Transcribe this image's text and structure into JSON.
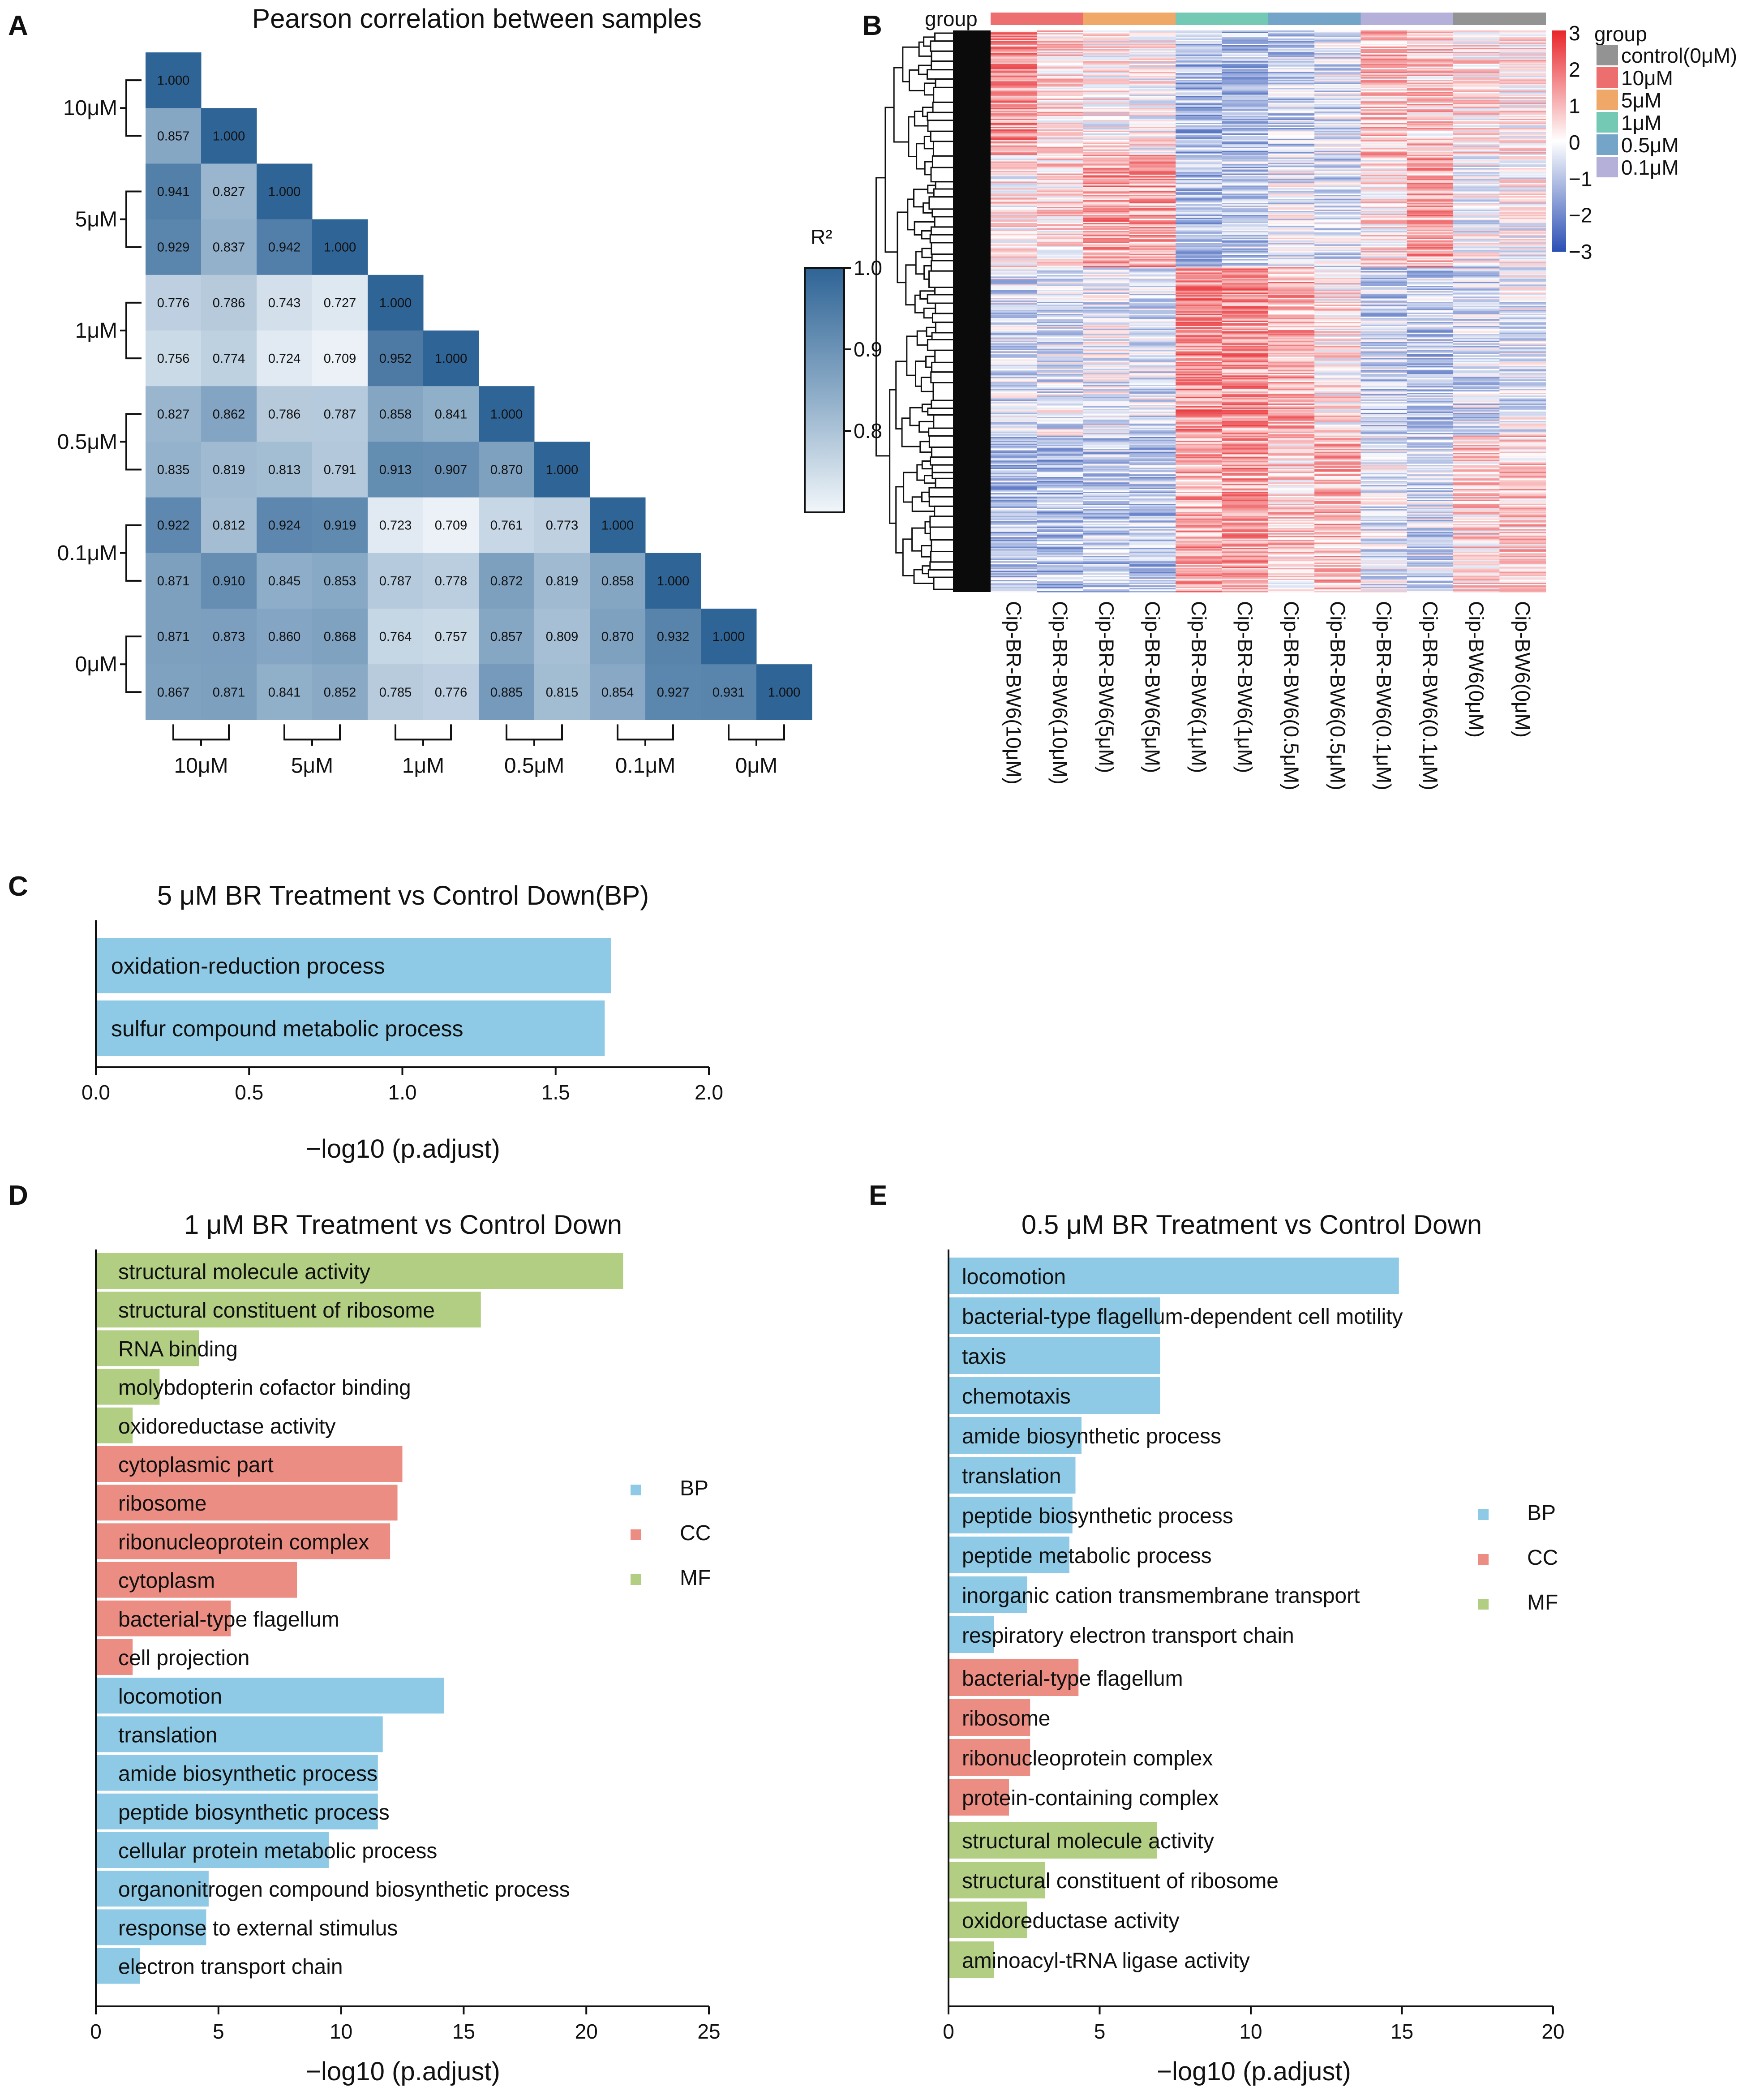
{
  "panel_letters": {
    "a": "A",
    "b": "B",
    "c": "C",
    "d": "D",
    "e": "E"
  },
  "legend_categories": [
    "BP",
    "CC",
    "MF"
  ],
  "colors": {
    "BP": "#8ecae6",
    "CC": "#eb8d82",
    "MF": "#b1ce83",
    "heat_blue": "#2f6496",
    "heat_low": "#f1f6fa"
  },
  "chart_data": [
    {
      "id": "A",
      "type": "heatmap",
      "title": "Pearson correlation between samples",
      "colorbar_label": "R²",
      "colorbar_ticks": [
        "1.0",
        "0.9",
        "0.8"
      ],
      "colorbar_range": [
        0.7,
        1.0
      ],
      "group_labels": [
        "10μM",
        "5μM",
        "1μM",
        "0.5μM",
        "0.1μM",
        "0μM"
      ],
      "matrix": [
        [
          "1.000"
        ],
        [
          "0.857",
          "1.000"
        ],
        [
          "0.941",
          "0.827",
          "1.000"
        ],
        [
          "0.929",
          "0.837",
          "0.942",
          "1.000"
        ],
        [
          "0.776",
          "0.786",
          "0.743",
          "0.727",
          "1.000"
        ],
        [
          "0.756",
          "0.774",
          "0.724",
          "0.709",
          "0.952",
          "1.000"
        ],
        [
          "0.827",
          "0.862",
          "0.786",
          "0.787",
          "0.858",
          "0.841",
          "1.000"
        ],
        [
          "0.835",
          "0.819",
          "0.813",
          "0.791",
          "0.913",
          "0.907",
          "0.870",
          "1.000"
        ],
        [
          "0.922",
          "0.812",
          "0.924",
          "0.919",
          "0.723",
          "0.709",
          "0.761",
          "0.773",
          "1.000"
        ],
        [
          "0.871",
          "0.910",
          "0.845",
          "0.853",
          "0.787",
          "0.778",
          "0.872",
          "0.819",
          "0.858",
          "1.000"
        ],
        [
          "0.871",
          "0.873",
          "0.860",
          "0.868",
          "0.764",
          "0.757",
          "0.857",
          "0.809",
          "0.870",
          "0.932",
          "1.000"
        ],
        [
          "0.867",
          "0.871",
          "0.841",
          "0.852",
          "0.785",
          "0.776",
          "0.885",
          "0.815",
          "0.854",
          "0.927",
          "0.931",
          "1.000"
        ]
      ]
    },
    {
      "id": "B",
      "type": "heatmap",
      "group_track_label": "group",
      "samples": [
        "Cip-BR-BW6(10μM)",
        "Cip-BR-BW6(10μM)",
        "Cip-BR-BW6(5μM)",
        "Cip-BR-BW6(5μM)",
        "Cip-BR-BW6(1μM)",
        "Cip-BR-BW6(1μM)",
        "Cip-BR-BW6(0.5μM)",
        "Cip-BR-BW6(0.5μM)",
        "Cip-BR-BW6(0.1μM)",
        "Cip-BR-BW6(0.1μM)",
        "Cip-BW6(0μM)",
        "Cip-BW6(0μM)"
      ],
      "group_colors": [
        "#ed6e6e",
        "#ed6e6e",
        "#f0a869",
        "#f0a869",
        "#74c9b4",
        "#74c9b4",
        "#74a5c9",
        "#74a5c9",
        "#b5b0da",
        "#b5b0da",
        "#939393",
        "#939393"
      ],
      "colorscale_ticks": [
        "3",
        "2",
        "1",
        "0",
        "−1",
        "−2",
        "−3"
      ],
      "colorscale_range": [
        -3,
        3
      ],
      "legend_title": "group",
      "legend": [
        {
          "label": "control(0μM)",
          "color": "#939393"
        },
        {
          "label": "10μM",
          "color": "#ed6e6e"
        },
        {
          "label": "5μM",
          "color": "#f0a869"
        },
        {
          "label": "1μM",
          "color": "#74c9b4"
        },
        {
          "label": "0.5μM",
          "color": "#74a5c9"
        },
        {
          "label": "0.1μM",
          "color": "#b5b0da"
        }
      ],
      "row_count": 420
    },
    {
      "id": "C",
      "type": "bar",
      "orientation": "horizontal",
      "title": "5 μM BR Treatment vs Control Down(BP)",
      "xlabel": "−log10 (p.adjust)",
      "xlim": [
        0,
        2
      ],
      "xticks": [
        "0.0",
        "0.5",
        "1.0",
        "1.5",
        "2.0"
      ],
      "bars": [
        {
          "label": "oxidation-reduction process",
          "value": 1.68,
          "category": "BP"
        },
        {
          "label": "sulfur compound metabolic process",
          "value": 1.66,
          "category": "BP"
        }
      ]
    },
    {
      "id": "D",
      "type": "bar",
      "orientation": "horizontal",
      "title": "1 μM BR Treatment vs Control Down",
      "xlabel": "−log10 (p.adjust)",
      "xlim": [
        0,
        25
      ],
      "xticks": [
        "0",
        "5",
        "10",
        "15",
        "20",
        "25"
      ],
      "bars": [
        {
          "label": "structural molecule activity",
          "value": 21.5,
          "category": "MF"
        },
        {
          "label": "structural constituent of ribosome",
          "value": 15.7,
          "category": "MF"
        },
        {
          "label": "RNA binding",
          "value": 4.2,
          "category": "MF"
        },
        {
          "label": "molybdopterin cofactor binding",
          "value": 2.6,
          "category": "MF"
        },
        {
          "label": "oxidoreductase activity",
          "value": 1.5,
          "category": "MF"
        },
        {
          "label": "cytoplasmic part",
          "value": 12.5,
          "category": "CC"
        },
        {
          "label": "ribosome",
          "value": 12.3,
          "category": "CC"
        },
        {
          "label": "ribonucleoprotein complex",
          "value": 12.0,
          "category": "CC"
        },
        {
          "label": "cytoplasm",
          "value": 8.2,
          "category": "CC"
        },
        {
          "label": "bacterial-type flagellum",
          "value": 5.5,
          "category": "CC"
        },
        {
          "label": "cell projection",
          "value": 1.5,
          "category": "CC"
        },
        {
          "label": "locomotion",
          "value": 14.2,
          "category": "BP"
        },
        {
          "label": "translation",
          "value": 11.7,
          "category": "BP"
        },
        {
          "label": "amide biosynthetic process",
          "value": 11.5,
          "category": "BP"
        },
        {
          "label": "peptide biosynthetic process",
          "value": 11.5,
          "category": "BP"
        },
        {
          "label": "cellular protein metabolic process",
          "value": 9.5,
          "category": "BP"
        },
        {
          "label": "organonitrogen compound biosynthetic process",
          "value": 4.6,
          "category": "BP"
        },
        {
          "label": "response to external stimulus",
          "value": 4.5,
          "category": "BP"
        },
        {
          "label": "electron transport chain",
          "value": 1.8,
          "category": "BP"
        }
      ]
    },
    {
      "id": "E",
      "type": "bar",
      "orientation": "horizontal",
      "title": "0.5 μM BR Treatment vs Control Down",
      "xlabel": "−log10 (p.adjust)",
      "xlim": [
        0,
        20
      ],
      "xticks": [
        "0",
        "5",
        "10",
        "15",
        "20"
      ],
      "bars": [
        {
          "label": "locomotion",
          "value": 14.9,
          "category": "BP"
        },
        {
          "label": "bacterial-type flagellum-dependent cell motility",
          "value": 7.0,
          "category": "BP"
        },
        {
          "label": "taxis",
          "value": 7.0,
          "category": "BP"
        },
        {
          "label": "chemotaxis",
          "value": 7.0,
          "category": "BP"
        },
        {
          "label": "amide biosynthetic process",
          "value": 4.4,
          "category": "BP"
        },
        {
          "label": "translation",
          "value": 4.2,
          "category": "BP"
        },
        {
          "label": "peptide biosynthetic process",
          "value": 4.1,
          "category": "BP"
        },
        {
          "label": "peptide metabolic process",
          "value": 4.0,
          "category": "BP"
        },
        {
          "label": "inorganic cation transmembrane transport",
          "value": 2.6,
          "category": "BP"
        },
        {
          "label": "respiratory electron transport chain",
          "value": 1.5,
          "category": "BP"
        },
        {
          "label": "bacterial-type flagellum",
          "value": 4.3,
          "category": "CC"
        },
        {
          "label": "ribosome",
          "value": 2.7,
          "category": "CC"
        },
        {
          "label": "ribonucleoprotein complex",
          "value": 2.7,
          "category": "CC"
        },
        {
          "label": "protein-containing complex",
          "value": 2.0,
          "category": "CC"
        },
        {
          "label": "structural molecule activity",
          "value": 6.9,
          "category": "MF"
        },
        {
          "label": "structural constituent of ribosome",
          "value": 3.2,
          "category": "MF"
        },
        {
          "label": "oxidoreductase activity",
          "value": 2.6,
          "category": "MF"
        },
        {
          "label": "aminoacyl-tRNA ligase activity",
          "value": 1.5,
          "category": "MF"
        }
      ]
    }
  ]
}
